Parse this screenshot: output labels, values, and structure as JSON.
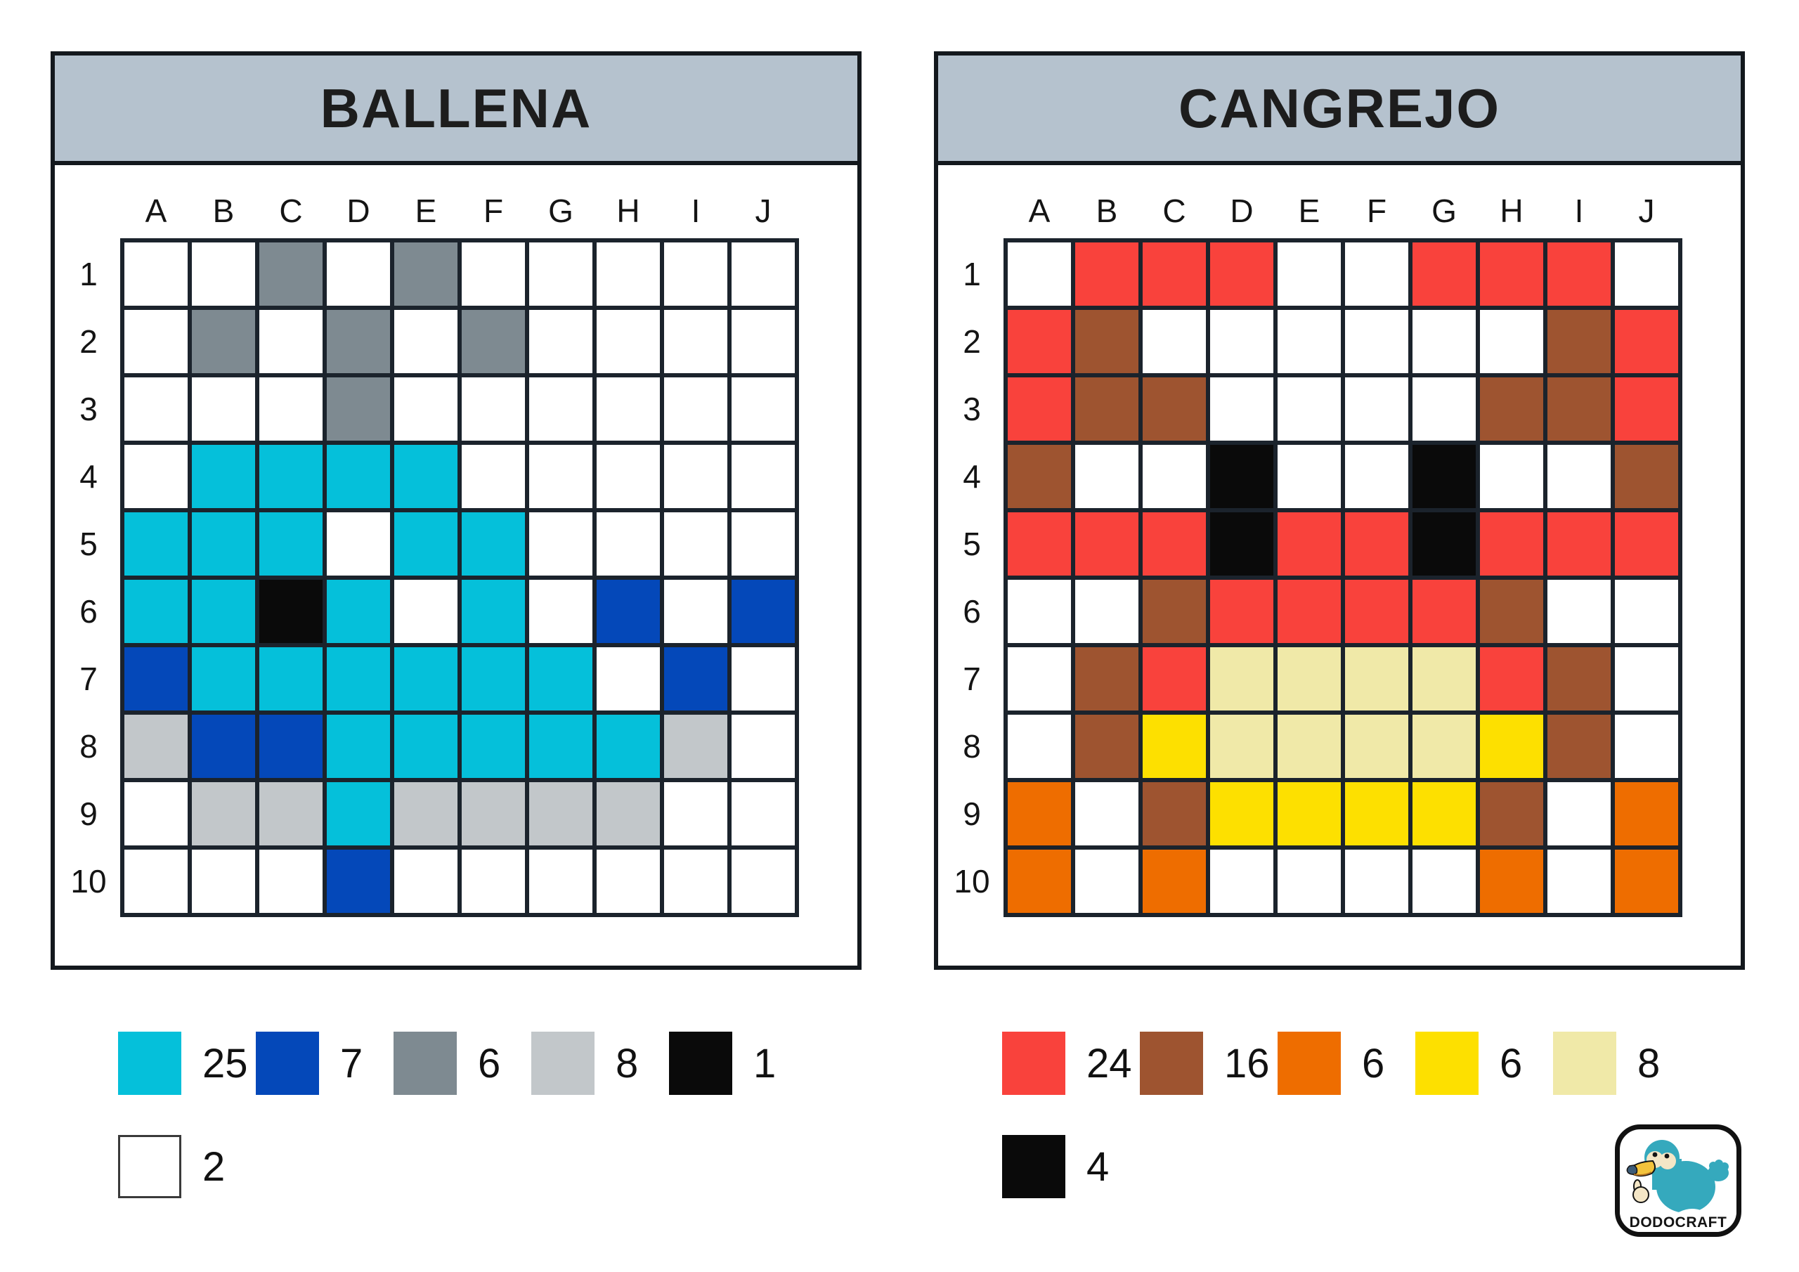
{
  "page": {
    "background": "#ffffff",
    "panel_border_color": "#13181d",
    "grid_line_color": "#1b232c",
    "header_bg": "#b5c2ce"
  },
  "panels": [
    {
      "title": "BALLENA",
      "columns": [
        "A",
        "B",
        "C",
        "D",
        "E",
        "F",
        "G",
        "H",
        "I",
        "J"
      ],
      "rows": [
        "1",
        "2",
        "3",
        "4",
        "5",
        "6",
        "7",
        "8",
        "9",
        "10"
      ],
      "palette": {
        ".": "#ffffff",
        "C": "#05c0da",
        "B": "#0448b9",
        "G": "#7e8a91",
        "L": "#c2c7ca",
        "K": "#0a0a0a"
      },
      "cells": [
        "..G.G.....",
        ".G.G.G....",
        "...G......",
        ".CCCC.....",
        "CCC.CC....",
        "CCKC.C.B.B",
        "BCCCCCC.B.",
        "LBBCCCCCL.",
        ".LLCLLLL..",
        "...B......"
      ],
      "legend": [
        {
          "name": "cyan",
          "color": "#05c0da",
          "count": "25"
        },
        {
          "name": "blue",
          "color": "#0448b9",
          "count": "7"
        },
        {
          "name": "gray",
          "color": "#7e8a91",
          "count": "6"
        },
        {
          "name": "light-gray",
          "color": "#c2c7ca",
          "count": "8"
        },
        {
          "name": "black",
          "color": "#0a0a0a",
          "count": "1"
        },
        {
          "name": "white",
          "color": "#ffffff",
          "count": "2",
          "bordered": true
        }
      ]
    },
    {
      "title": "CANGREJO",
      "columns": [
        "A",
        "B",
        "C",
        "D",
        "E",
        "F",
        "G",
        "H",
        "I",
        "J"
      ],
      "rows": [
        "1",
        "2",
        "3",
        "4",
        "5",
        "6",
        "7",
        "8",
        "9",
        "10"
      ],
      "palette": {
        ".": "#ffffff",
        "R": "#f9423c",
        "N": "#9e5430",
        "O": "#ee6d00",
        "Y": "#fde000",
        "M": "#f0e9a8",
        "K": "#0a0a0a"
      },
      "cells": [
        ".RRR..RRR.",
        "RN......NR",
        "RNN....NNR",
        "N..K..K..N",
        "RRRKRRKRRR",
        "..NRRRRN..",
        ".NRMMMMRN.",
        ".NYMMMMYN.",
        "O.NYYYYN.O",
        "O.O....O.O"
      ],
      "legend": [
        {
          "name": "red",
          "color": "#f9423c",
          "count": "24"
        },
        {
          "name": "brown",
          "color": "#9e5430",
          "count": "16"
        },
        {
          "name": "orange",
          "color": "#ee6d00",
          "count": "6"
        },
        {
          "name": "yellow",
          "color": "#fde000",
          "count": "6"
        },
        {
          "name": "cream",
          "color": "#f0e9a8",
          "count": "8"
        },
        {
          "name": "black",
          "color": "#0a0a0a",
          "count": "4"
        }
      ]
    }
  ],
  "logo": {
    "text": "DODOCRAFT",
    "bird_colors": {
      "body": "#35a9bd",
      "face": "#f4e6c6",
      "beak": "#f3c33c",
      "beak_tip": "#3d5b76",
      "outline": "#141414"
    }
  }
}
